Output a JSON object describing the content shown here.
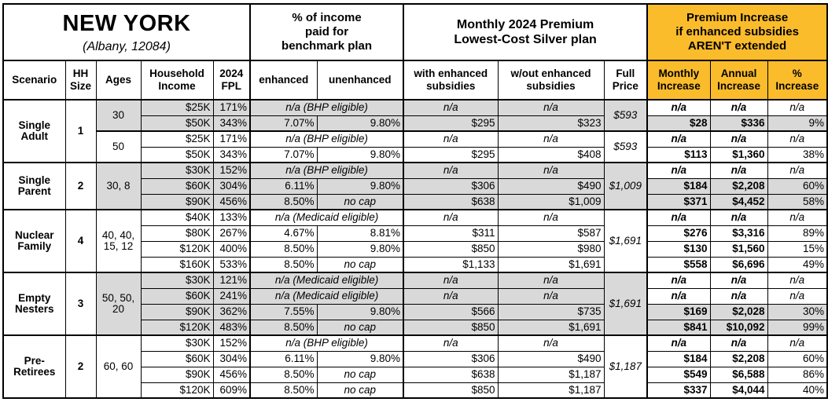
{
  "title": {
    "state": "NEW YORK",
    "subtitle": "(Albany, 12084)"
  },
  "colors": {
    "highlight": "#FBBC2C",
    "row_shade": "#D9D9D9",
    "border": "#000000"
  },
  "groups": {
    "benchmark": "% of income\npaid for\nbenchmark plan",
    "premium": "Monthly 2024 Premium\nLowest-Cost Silver plan",
    "increase": "Premium Increase\nif enhanced subsidies\nAREN'T extended"
  },
  "columns": [
    "Scenario",
    "HH\nSize",
    "Ages",
    "Household\nIncome",
    "2024\nFPL",
    "enhanced",
    "unenhanced",
    "with enhanced\nsubsidies",
    "w/out enhanced\nsubsidies",
    "Full\nPrice",
    "Monthly\nIncrease",
    "Annual\nIncrease",
    "%\nIncrease"
  ],
  "scenarios": [
    {
      "name": "Single\nAdult",
      "hh_size": "1",
      "blocks": [
        {
          "ages": "30",
          "shaded": true,
          "full_price": "$593",
          "rows": [
            {
              "income": "$25K",
              "fpl": "171%",
              "note": "n/a (BHP eligible)",
              "with": "n/a",
              "without": "n/a",
              "monthly": "n/a",
              "annual": "n/a",
              "pct": "n/a"
            },
            {
              "income": "$50K",
              "fpl": "343%",
              "enhanced": "7.07%",
              "unenhanced": "9.80%",
              "with": "$295",
              "without": "$323",
              "monthly": "$28",
              "annual": "$336",
              "pct": "9%"
            }
          ]
        },
        {
          "ages": "50",
          "shaded": false,
          "full_price": "$593",
          "rows": [
            {
              "income": "$25K",
              "fpl": "171%",
              "note": "n/a (BHP eligible)",
              "with": "n/a",
              "without": "n/a",
              "monthly": "n/a",
              "annual": "n/a",
              "pct": "n/a"
            },
            {
              "income": "$50K",
              "fpl": "343%",
              "enhanced": "7.07%",
              "unenhanced": "9.80%",
              "with": "$295",
              "without": "$408",
              "monthly": "$113",
              "annual": "$1,360",
              "pct": "38%"
            }
          ]
        }
      ]
    },
    {
      "name": "Single\nParent",
      "hh_size": "2",
      "blocks": [
        {
          "ages": "30, 8",
          "shaded": true,
          "full_price": "$1,009",
          "rows": [
            {
              "income": "$30K",
              "fpl": "152%",
              "note": "n/a (BHP eligible)",
              "with": "n/a",
              "without": "n/a",
              "monthly": "n/a",
              "annual": "n/a",
              "pct": "n/a"
            },
            {
              "income": "$60K",
              "fpl": "304%",
              "enhanced": "6.11%",
              "unenhanced": "9.80%",
              "with": "$306",
              "without": "$490",
              "monthly": "$184",
              "annual": "$2,208",
              "pct": "60%"
            },
            {
              "income": "$90K",
              "fpl": "456%",
              "enhanced": "8.50%",
              "unenhanced": "no cap",
              "with": "$638",
              "without": "$1,009",
              "monthly": "$371",
              "annual": "$4,452",
              "pct": "58%"
            }
          ]
        }
      ]
    },
    {
      "name": "Nuclear\nFamily",
      "hh_size": "4",
      "blocks": [
        {
          "ages": "40, 40,\n15, 12",
          "shaded": false,
          "full_price": "$1,691",
          "rows": [
            {
              "income": "$40K",
              "fpl": "133%",
              "note": "n/a (Medicaid eligible)",
              "with": "n/a",
              "without": "n/a",
              "monthly": "n/a",
              "annual": "n/a",
              "pct": "n/a"
            },
            {
              "income": "$80K",
              "fpl": "267%",
              "enhanced": "4.67%",
              "unenhanced": "8.81%",
              "with": "$311",
              "without": "$587",
              "monthly": "$276",
              "annual": "$3,316",
              "pct": "89%"
            },
            {
              "income": "$120K",
              "fpl": "400%",
              "enhanced": "8.50%",
              "unenhanced": "9.80%",
              "with": "$850",
              "without": "$980",
              "monthly": "$130",
              "annual": "$1,560",
              "pct": "15%"
            },
            {
              "income": "$160K",
              "fpl": "533%",
              "enhanced": "8.50%",
              "unenhanced": "no cap",
              "with": "$1,133",
              "without": "$1,691",
              "monthly": "$558",
              "annual": "$6,696",
              "pct": "49%"
            }
          ]
        }
      ]
    },
    {
      "name": "Empty\nNesters",
      "hh_size": "3",
      "blocks": [
        {
          "ages": "50, 50,\n20",
          "shaded": true,
          "full_price": "$1,691",
          "rows": [
            {
              "income": "$30K",
              "fpl": "121%",
              "note": "n/a (Medicaid eligible)",
              "with": "n/a",
              "without": "n/a",
              "monthly": "n/a",
              "annual": "n/a",
              "pct": "n/a"
            },
            {
              "income": "$60K",
              "fpl": "241%",
              "note": "n/a (Medicaid eligible)",
              "with": "n/a",
              "without": "n/a",
              "monthly": "n/a",
              "annual": "n/a",
              "pct": "n/a"
            },
            {
              "income": "$90K",
              "fpl": "362%",
              "enhanced": "7.55%",
              "unenhanced": "9.80%",
              "with": "$566",
              "without": "$735",
              "monthly": "$169",
              "annual": "$2,028",
              "pct": "30%"
            },
            {
              "income": "$120K",
              "fpl": "483%",
              "enhanced": "8.50%",
              "unenhanced": "no cap",
              "with": "$850",
              "without": "$1,691",
              "monthly": "$841",
              "annual": "$10,092",
              "pct": "99%"
            }
          ]
        }
      ]
    },
    {
      "name": "Pre-\nRetirees",
      "hh_size": "2",
      "blocks": [
        {
          "ages": "60, 60",
          "shaded": false,
          "full_price": "$1,187",
          "rows": [
            {
              "income": "$30K",
              "fpl": "152%",
              "note": "n/a (BHP eligible)",
              "with": "n/a",
              "without": "n/a",
              "monthly": "n/a",
              "annual": "n/a",
              "pct": "n/a"
            },
            {
              "income": "$60K",
              "fpl": "304%",
              "enhanced": "6.11%",
              "unenhanced": "9.80%",
              "with": "$306",
              "without": "$490",
              "monthly": "$184",
              "annual": "$2,208",
              "pct": "60%"
            },
            {
              "income": "$90K",
              "fpl": "456%",
              "enhanced": "8.50%",
              "unenhanced": "no cap",
              "with": "$638",
              "without": "$1,187",
              "monthly": "$549",
              "annual": "$6,588",
              "pct": "86%"
            },
            {
              "income": "$120K",
              "fpl": "609%",
              "enhanced": "8.50%",
              "unenhanced": "no cap",
              "with": "$850",
              "without": "$1,187",
              "monthly": "$337",
              "annual": "$4,044",
              "pct": "40%"
            }
          ]
        }
      ]
    }
  ]
}
